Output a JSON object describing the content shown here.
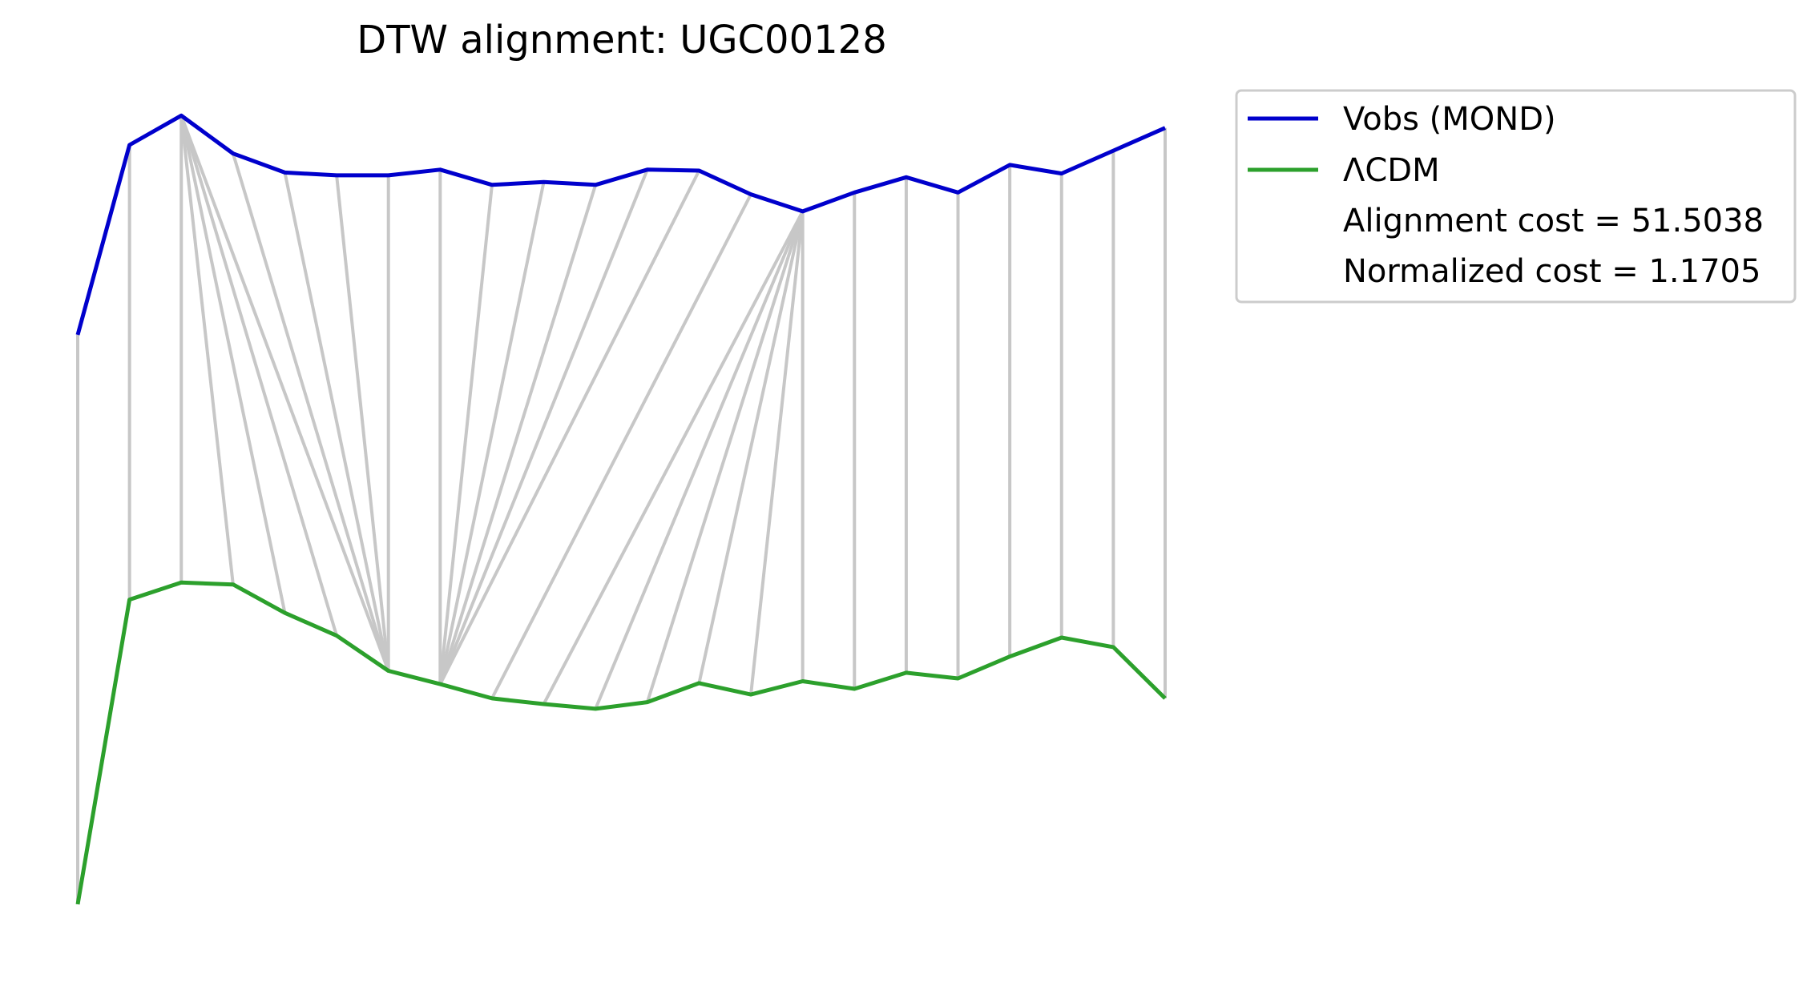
{
  "chart_data": {
    "type": "line",
    "title": "DTW alignment: UGC00128",
    "xlabel": "",
    "ylabel": "",
    "axes_visible": false,
    "grid": false,
    "legend_position": "outside-top-right",
    "series": [
      {
        "name": "Vobs (MOND)",
        "color": "#0000cc",
        "values": [
          0.0,
          1.0,
          1.155,
          0.955,
          0.855,
          0.84,
          0.84,
          0.87,
          0.79,
          0.805,
          0.79,
          0.87,
          0.865,
          0.74,
          0.65,
          0.75,
          0.83,
          0.75,
          0.895,
          0.85,
          0.97,
          1.09
        ]
      },
      {
        "name": "ΛCDM",
        "color": "#2ca02c",
        "values": [
          -3.0,
          -1.395,
          -1.305,
          -1.315,
          -1.465,
          -1.585,
          -1.77,
          -1.84,
          -1.915,
          -1.945,
          -1.97,
          -1.935,
          -1.835,
          -1.895,
          -1.825,
          -1.865,
          -1.78,
          -1.81,
          -1.695,
          -1.595,
          -1.645,
          -1.915
        ]
      }
    ],
    "alignment_path": [
      [
        0,
        0
      ],
      [
        1,
        1
      ],
      [
        2,
        2
      ],
      [
        2,
        3
      ],
      [
        2,
        4
      ],
      [
        2,
        5
      ],
      [
        2,
        6
      ],
      [
        3,
        6
      ],
      [
        4,
        6
      ],
      [
        5,
        6
      ],
      [
        6,
        6
      ],
      [
        7,
        7
      ],
      [
        8,
        7
      ],
      [
        9,
        7
      ],
      [
        10,
        7
      ],
      [
        11,
        7
      ],
      [
        12,
        7
      ],
      [
        13,
        8
      ],
      [
        14,
        9
      ],
      [
        14,
        10
      ],
      [
        14,
        11
      ],
      [
        14,
        12
      ],
      [
        14,
        13
      ],
      [
        14,
        14
      ],
      [
        15,
        15
      ],
      [
        16,
        16
      ],
      [
        17,
        17
      ],
      [
        18,
        18
      ],
      [
        19,
        19
      ],
      [
        20,
        20
      ],
      [
        21,
        21
      ]
    ],
    "alignment_color": "#c7c7c7",
    "legend": {
      "entries": [
        {
          "label": "Vobs (MOND)",
          "color": "#0000cc",
          "has_line": true
        },
        {
          "label": "ΛCDM",
          "color": "#2ca02c",
          "has_line": true
        },
        {
          "label": "Alignment cost = 51.5038",
          "has_line": false
        },
        {
          "label": "Normalized cost = 1.1705",
          "has_line": false
        }
      ]
    },
    "alignment_cost": 51.5038,
    "normalized_cost": 1.1705
  }
}
